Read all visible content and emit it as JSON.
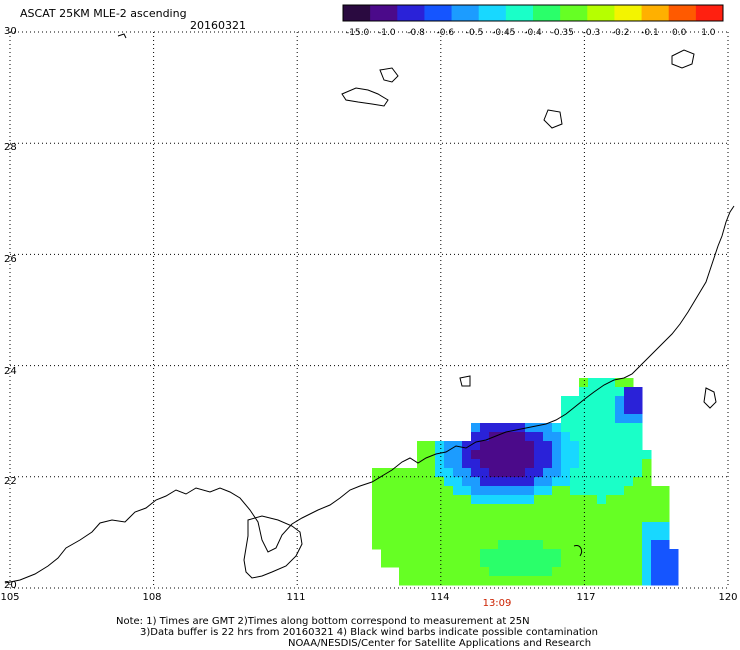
{
  "title": "ASCAT 25KM MLE-2 ascending",
  "date": "20160321",
  "colorbar": {
    "labels": [
      "-15.0",
      "-1.0",
      "-0.8",
      "-0.6",
      "-0.5",
      "-0.45",
      "-0.4",
      "-0.35",
      "-0.3",
      "-0.2",
      "-0.1",
      "0.0",
      "1.0"
    ],
    "colors": [
      "#2a0a40",
      "#4b0a8a",
      "#2a22d8",
      "#1555ff",
      "#1c9cff",
      "#18d8ff",
      "#1affc8",
      "#2aff6a",
      "#66ff24",
      "#b6ff00",
      "#f3f400",
      "#ffb000",
      "#ff5a00",
      "#ff2010"
    ]
  },
  "axes": {
    "lat_labels": [
      "30",
      "28",
      "26",
      "24",
      "22",
      "20"
    ],
    "lon_labels": [
      "105",
      "108",
      "111",
      "114",
      "117",
      "120"
    ],
    "lat_range": [
      20,
      30
    ],
    "lon_range": [
      105,
      120
    ]
  },
  "pass_time": "13:09",
  "notes": {
    "line1": "Note: 1) Times are GMT 2)Times along bottom correspond to measurement at 25N",
    "line2": "3)Data buffer is 22 hrs from 20160321 4) Black wind barbs indicate possible contamination",
    "line3": "NOAA/NESDIS/Center for Satellite Applications and Research"
  }
}
